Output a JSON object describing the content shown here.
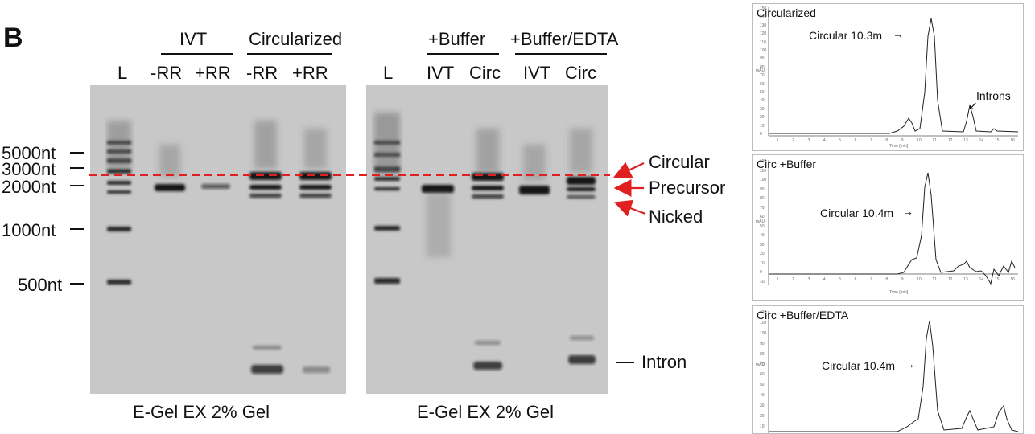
{
  "panel_letter": "B",
  "group_headers": {
    "ivt": "IVT",
    "circularized": "Circularized",
    "buffer": "+Buffer",
    "buffer_edta": "+Buffer/EDTA"
  },
  "lanes_gel1": [
    "L",
    "-RR",
    "+RR",
    "-RR",
    "+RR"
  ],
  "lanes_gel2": [
    "L",
    "IVT",
    "Circ",
    "IVT",
    "Circ"
  ],
  "ladder_labels": [
    "5000nt",
    "3000nt",
    "2000nt",
    "1000nt",
    "500nt"
  ],
  "band_labels": {
    "circular": "Circular",
    "precursor": "Precursor",
    "nicked": "Nicked",
    "intron": "Intron"
  },
  "gel_captions": [
    "E-Gel EX 2% Gel",
    "E-Gel EX 2% Gel"
  ],
  "colors": {
    "guide_line": "#e02020",
    "arrow": "#e02020",
    "gel_background": "#c8c8c8",
    "band": "#1a1a1a"
  },
  "chromatograms": [
    {
      "title": "Circularized",
      "peak_label": "Circular 10.3m",
      "second_label": "Introns",
      "y_axis": "mAU",
      "x_axis": "Time [min]",
      "y_ticks": [
        "150",
        "140",
        "130",
        "120",
        "110",
        "100",
        "90",
        "80",
        "70",
        "60",
        "50",
        "40",
        "30",
        "20",
        "10",
        "0"
      ],
      "x_ticks": [
        "1",
        "2",
        "3",
        "4",
        "5",
        "6",
        "7",
        "8",
        "9",
        "10",
        "11",
        "12",
        "13",
        "14",
        "15",
        "16"
      ]
    },
    {
      "title": "Circ +Buffer",
      "peak_label": "Circular 10.4m",
      "y_axis": "mAU",
      "x_axis": "Time [min]",
      "y_ticks": [
        "120",
        "110",
        "100",
        "90",
        "80",
        "70",
        "60",
        "50",
        "40",
        "30",
        "20",
        "10",
        "0",
        "-10"
      ],
      "x_ticks": [
        "1",
        "2",
        "3",
        "4",
        "5",
        "6",
        "7",
        "8",
        "9",
        "10",
        "11",
        "12",
        "13",
        "14",
        "15",
        "16"
      ]
    },
    {
      "title": "Circ +Buffer/EDTA",
      "peak_label": "Circular 10.4m",
      "y_axis": "mAU",
      "y_ticks": [
        "120",
        "110",
        "100",
        "90",
        "80",
        "70",
        "60",
        "50",
        "40",
        "30",
        "20",
        "10"
      ]
    }
  ]
}
